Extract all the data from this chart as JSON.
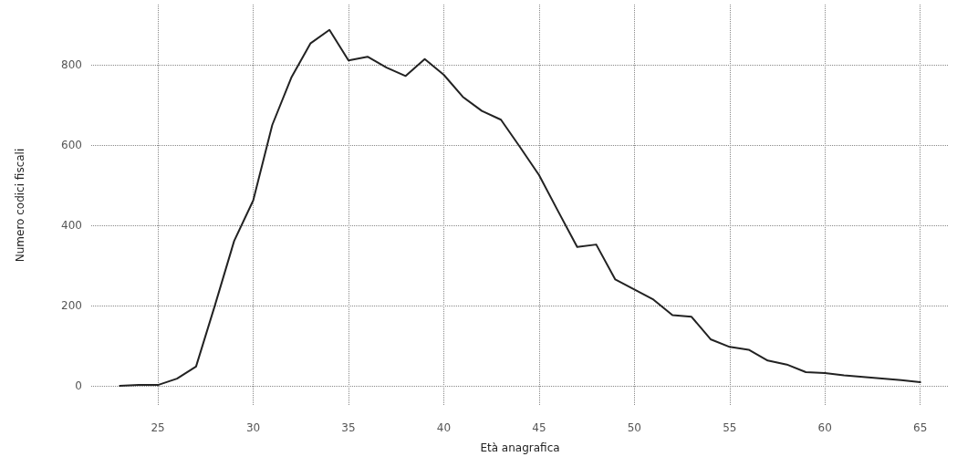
{
  "chart_data": {
    "type": "line",
    "xlabel": "Età anagrafica",
    "ylabel": "Numero codici fiscali",
    "x": [
      23,
      24,
      25,
      26,
      27,
      28,
      29,
      30,
      31,
      32,
      33,
      34,
      35,
      36,
      37,
      38,
      39,
      40,
      41,
      42,
      43,
      44,
      45,
      46,
      47,
      48,
      49,
      50,
      51,
      52,
      53,
      54,
      55,
      56,
      57,
      58,
      59,
      60,
      61,
      62,
      63,
      64,
      65
    ],
    "series": [
      {
        "color": "#222222",
        "values": [
          0,
          2,
          2,
          18,
          48,
          202,
          361,
          462,
          650,
          768,
          853,
          887,
          811,
          820,
          793,
          772,
          814,
          775,
          720,
          685,
          663,
          595,
          525,
          435,
          346,
          352,
          265,
          240,
          215,
          176,
          172,
          116,
          97,
          90,
          63,
          53,
          34,
          32,
          26,
          22,
          18,
          14,
          9
        ]
      }
    ],
    "xlim": [
      21.5,
      66.5
    ],
    "xticks": [
      25,
      30,
      35,
      40,
      45,
      50,
      55,
      60,
      65
    ],
    "ylim": [
      -50,
      950
    ],
    "yticks": [
      0,
      200,
      400,
      600,
      800
    ],
    "grid": true,
    "marker": "none",
    "line_style": "solid"
  }
}
